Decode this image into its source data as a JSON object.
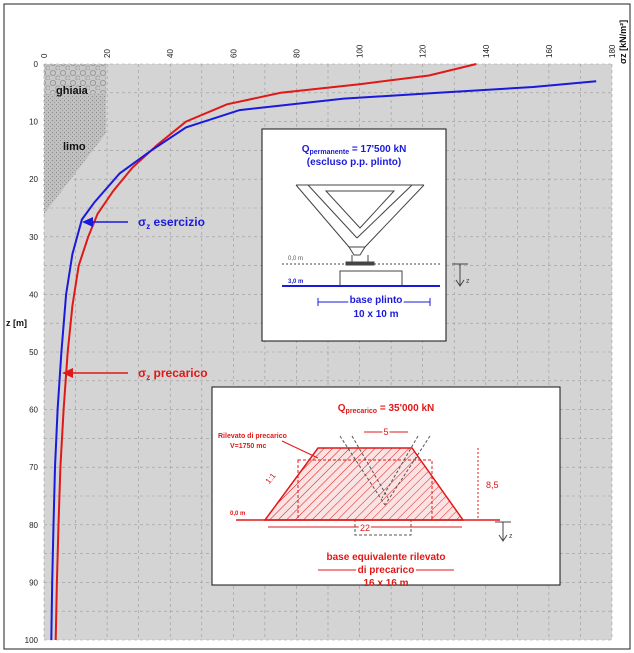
{
  "chart_data": {
    "type": "line",
    "x_axis": {
      "ticks": [
        "0",
        "20",
        "40",
        "60",
        "80",
        "100",
        "120",
        "140",
        "160",
        "180"
      ],
      "range": [
        0,
        180
      ],
      "unit_label": "σz [kN/m²]",
      "position": "top",
      "tick_labels_rotated": true
    },
    "y_axis": {
      "label": "z [m]",
      "ticks": [
        "0",
        "10",
        "20",
        "30",
        "40",
        "50",
        "60",
        "70",
        "80",
        "90",
        "100"
      ],
      "range": [
        0,
        100
      ],
      "inverted": true
    },
    "grid": true,
    "series": [
      {
        "name": "σz esercizio",
        "color": "#1a1adc",
        "points": [
          [
            175,
            3
          ],
          [
            155,
            4
          ],
          [
            125,
            5
          ],
          [
            95,
            6
          ],
          [
            62,
            8
          ],
          [
            45,
            11
          ],
          [
            34,
            15
          ],
          [
            24,
            19
          ],
          [
            16,
            24
          ],
          [
            12,
            27
          ],
          [
            9,
            33
          ],
          [
            7,
            40
          ],
          [
            5.5,
            50
          ],
          [
            4.3,
            60
          ],
          [
            3.5,
            70
          ],
          [
            3,
            80
          ],
          [
            2.6,
            90
          ],
          [
            2.3,
            100
          ]
        ]
      },
      {
        "name": "σz precarico",
        "color": "#e01818",
        "points": [
          [
            137,
            0
          ],
          [
            122,
            2
          ],
          [
            100,
            3.5
          ],
          [
            75,
            5
          ],
          [
            58,
            7
          ],
          [
            45,
            10
          ],
          [
            36,
            14
          ],
          [
            28,
            18
          ],
          [
            22,
            22
          ],
          [
            17,
            26
          ],
          [
            14,
            30
          ],
          [
            11,
            35
          ],
          [
            9,
            42
          ],
          [
            7.5,
            50
          ],
          [
            6.2,
            60
          ],
          [
            5.2,
            70
          ],
          [
            4.6,
            80
          ],
          [
            4.1,
            90
          ],
          [
            3.7,
            100
          ]
        ]
      }
    ],
    "soil_layers": [
      {
        "label": "ghiaia",
        "z_top": 0,
        "z_bottom": 5
      },
      {
        "label": "limo",
        "z_top": 5,
        "z_bottom": 26
      }
    ],
    "annotations": [
      {
        "label_main": "σ",
        "label_sub": "z",
        "label_rest": " esercizio",
        "color": "#1a1adc"
      },
      {
        "label_main": "σ",
        "label_sub": "z",
        "label_rest": " precarico",
        "color": "#e01818"
      }
    ]
  },
  "inset_top": {
    "q_main": "Q",
    "q_sub": "permanente",
    "q_rest": " = 17'500 kN",
    "line2": "(escluso p.p. plinto)",
    "level_top": "0,0 m",
    "level_bottom": "3,0 m",
    "z_label": "z",
    "base_line1": "base plinto",
    "base_line2": "10 x 10 m"
  },
  "inset_bottom": {
    "q_main": "Q",
    "q_sub": "precarico",
    "q_rest": " = 35'000 kN",
    "rilevato_line1": "Rilevato di precarico",
    "rilevato_line2": "V=1750 mc",
    "slope": "1:1",
    "top_width": "5",
    "height": "8,5",
    "bottom_width": "22",
    "level": "0,0 m",
    "z_label": "z",
    "base_line1": "base equivalente rilevato",
    "base_line2": "di precarico",
    "base_line3": "16 x 16 m"
  },
  "colors": {
    "red": "#e01818",
    "blue": "#1a1adc",
    "plot_bg": "#d4d4d4",
    "grid": "#9a9a9a"
  }
}
